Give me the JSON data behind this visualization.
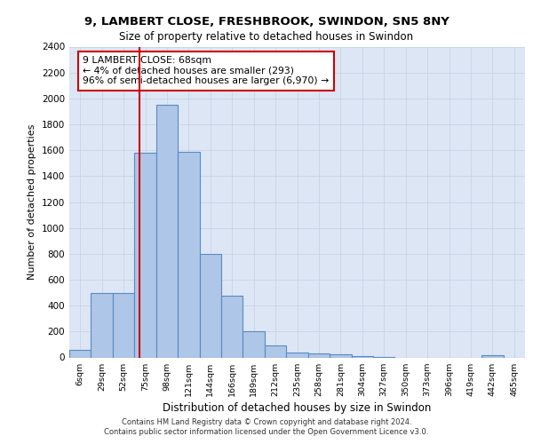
{
  "title_line1": "9, LAMBERT CLOSE, FRESHBROOK, SWINDON, SN5 8NY",
  "title_line2": "Size of property relative to detached houses in Swindon",
  "xlabel": "Distribution of detached houses by size in Swindon",
  "ylabel": "Number of detached properties",
  "categories": [
    "6sqm",
    "29sqm",
    "52sqm",
    "75sqm",
    "98sqm",
    "121sqm",
    "144sqm",
    "166sqm",
    "189sqm",
    "212sqm",
    "235sqm",
    "258sqm",
    "281sqm",
    "304sqm",
    "327sqm",
    "350sqm",
    "373sqm",
    "396sqm",
    "419sqm",
    "442sqm",
    "465sqm"
  ],
  "bar_values": [
    60,
    500,
    500,
    1580,
    1950,
    1590,
    800,
    480,
    200,
    90,
    35,
    30,
    25,
    10,
    5,
    0,
    0,
    0,
    0,
    20,
    0
  ],
  "bar_color": "#aec6e8",
  "bar_edge_color": "#5a8abf",
  "vline_color": "#cc0000",
  "vline_x": 2.75,
  "annotation_text": "9 LAMBERT CLOSE: 68sqm\n← 4% of detached houses are smaller (293)\n96% of semi-detached houses are larger (6,970) →",
  "annotation_box_facecolor": "#ffffff",
  "annotation_box_edgecolor": "#cc0000",
  "ylim_max": 2400,
  "ytick_step": 200,
  "grid_color": "#c8d4e8",
  "bg_color": "#dce6f5",
  "footer1": "Contains HM Land Registry data © Crown copyright and database right 2024.",
  "footer2": "Contains public sector information licensed under the Open Government Licence v3.0."
}
